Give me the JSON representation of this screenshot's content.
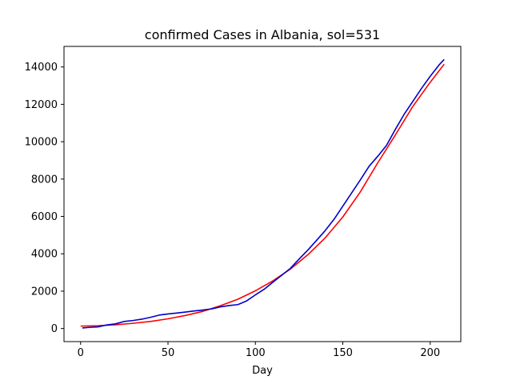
{
  "chart_data": {
    "type": "line",
    "title": "confirmed Cases in Albania, sol=531",
    "xlabel": "Day",
    "ylabel": "",
    "xlim": [
      -9.5,
      217.5
    ],
    "ylim": [
      -700,
      15100
    ],
    "xticks": [
      0,
      50,
      100,
      150,
      200
    ],
    "yticks": [
      0,
      2000,
      4000,
      6000,
      8000,
      10000,
      12000,
      14000
    ],
    "grid": false,
    "series": [
      {
        "color": "#ff0000",
        "x": [
          0,
          10,
          20,
          30,
          40,
          50,
          60,
          70,
          80,
          90,
          100,
          110,
          120,
          130,
          140,
          150,
          160,
          170,
          180,
          190,
          200,
          208
        ],
        "y": [
          130,
          150,
          200,
          280,
          380,
          520,
          700,
          920,
          1220,
          1570,
          2020,
          2550,
          3180,
          3950,
          4860,
          5970,
          7310,
          8870,
          10350,
          11880,
          13180,
          14150
        ]
      },
      {
        "color": "#0000cc",
        "x": [
          1,
          5,
          10,
          15,
          20,
          25,
          30,
          35,
          40,
          45,
          50,
          55,
          60,
          65,
          70,
          75,
          80,
          85,
          90,
          95,
          100,
          105,
          110,
          115,
          120,
          125,
          130,
          135,
          140,
          145,
          150,
          155,
          160,
          165,
          170,
          175,
          180,
          185,
          190,
          195,
          200,
          205,
          208
        ],
        "y": [
          30,
          60,
          90,
          190,
          250,
          380,
          430,
          500,
          600,
          720,
          780,
          830,
          880,
          940,
          990,
          1050,
          1160,
          1230,
          1280,
          1480,
          1800,
          2100,
          2480,
          2850,
          3220,
          3720,
          4200,
          4720,
          5250,
          5850,
          6550,
          7250,
          7950,
          8680,
          9220,
          9800,
          10650,
          11450,
          12150,
          12850,
          13500,
          14100,
          14400
        ]
      }
    ]
  }
}
